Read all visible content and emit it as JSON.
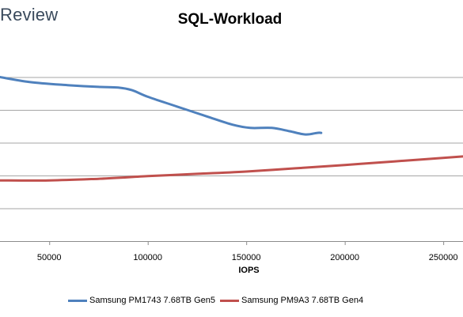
{
  "brand": {
    "text": "Review"
  },
  "chart_data": {
    "type": "line",
    "title": "SQL-Workload",
    "xlabel": "IOPS",
    "ylabel": "",
    "xlim": [
      25000,
      260000
    ],
    "ylim": [
      0,
      6
    ],
    "x_ticks": [
      50000,
      100000,
      150000,
      200000,
      250000
    ],
    "x_tick_labels": [
      "50000",
      "100000",
      "150000",
      "200000",
      "250000"
    ],
    "y_gridlines": [
      1,
      2,
      3,
      4,
      5
    ],
    "grid": "horizontal",
    "legend_position": "bottom",
    "series": [
      {
        "name": "Samsung PM1743 7.68TB Gen5",
        "color": "#4f81bd",
        "x": [
          25000,
          40000,
          60000,
          75000,
          85000,
          92000,
          100000,
          115000,
          130000,
          143000,
          152000,
          163000,
          172000,
          180000,
          186000,
          188000
        ],
        "y": [
          5.0,
          4.85,
          4.75,
          4.7,
          4.68,
          4.6,
          4.4,
          4.1,
          3.8,
          3.55,
          3.45,
          3.45,
          3.35,
          3.25,
          3.3,
          3.3
        ]
      },
      {
        "name": "Samsung PM9A3 7.68TB Gen4",
        "color": "#c0504d",
        "x": [
          25000,
          50000,
          75000,
          100000,
          125000,
          150000,
          175000,
          200000,
          225000,
          260000
        ],
        "y": [
          1.85,
          1.85,
          1.9,
          1.98,
          2.05,
          2.12,
          2.22,
          2.32,
          2.43,
          2.58
        ]
      }
    ]
  }
}
